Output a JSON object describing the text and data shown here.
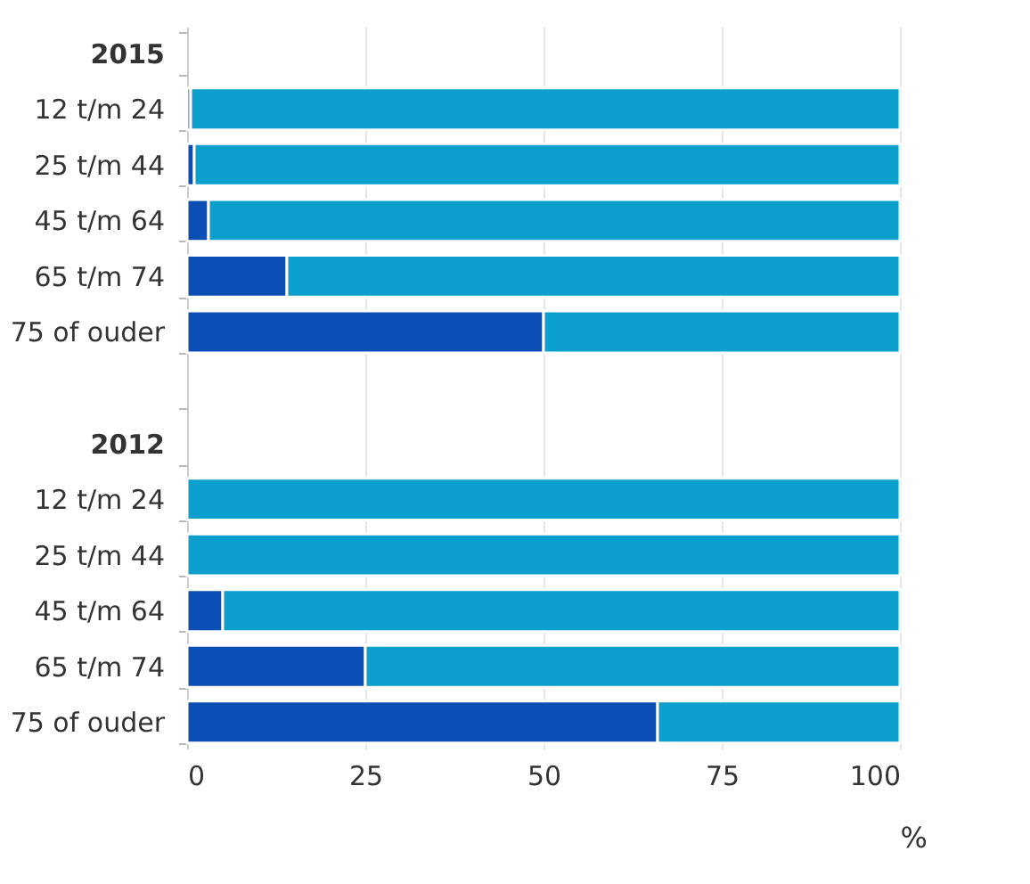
{
  "chart_data": {
    "type": "bar",
    "orientation": "horizontal",
    "stacked": true,
    "xlabel": "%",
    "categories": [
      "2015",
      "12 t/m 24",
      "25 t/m 44",
      "45 t/m 64",
      "65 t/m 74",
      "75 of ouder",
      null,
      "2012",
      "12 t/m 24",
      "25 t/m 44",
      "45 t/m 64",
      "65 t/m 74",
      "75 of ouder"
    ],
    "series": [
      {
        "color": "#0c4fb4",
        "values": [
          null,
          0.5,
          1,
          3,
          14,
          50,
          null,
          null,
          0,
          0,
          5,
          25,
          66
        ]
      },
      {
        "color": "#0a9fcc",
        "values": [
          null,
          99.5,
          99,
          97,
          86,
          50,
          null,
          null,
          100,
          100,
          95,
          75,
          34
        ]
      }
    ],
    "xlim": [
      0,
      100
    ],
    "xticks": [
      0,
      25,
      50,
      75,
      100
    ],
    "grid": "x"
  }
}
